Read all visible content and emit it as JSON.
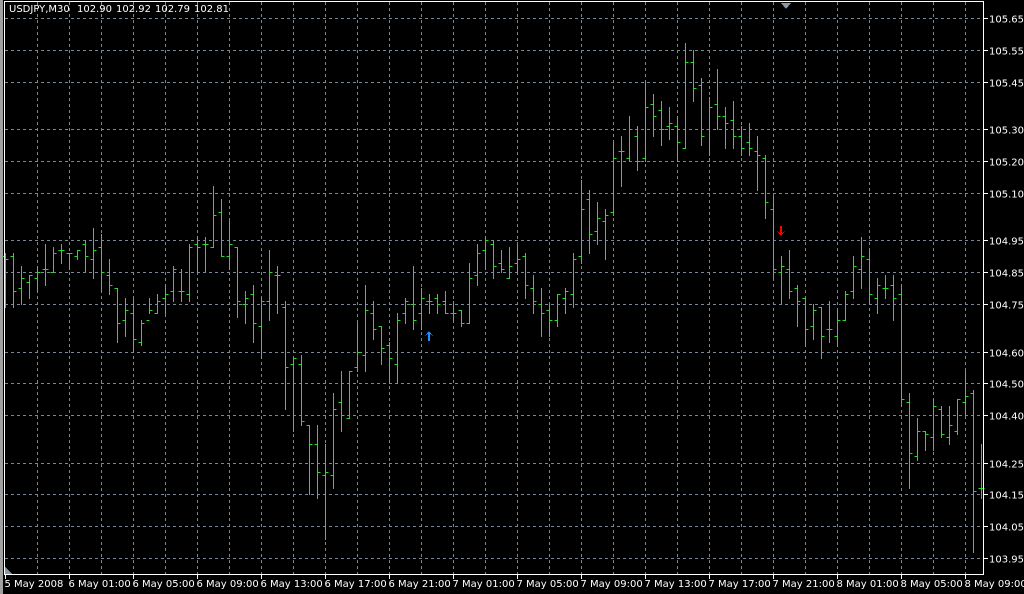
{
  "header": {
    "symbol": "USDJPY,M30",
    "open": "102.90",
    "high": "102.92",
    "low": "102.79",
    "close": "102.81"
  },
  "colors": {
    "background": "#000000",
    "bars": "#22e022",
    "grid": "#778899",
    "axis": "#ffffff",
    "buy_arrow": "#1e90ff",
    "sell_arrow": "#ff0000"
  },
  "chart_data": {
    "type": "ohlc",
    "title": "USDJPY,M30",
    "xlabel": "",
    "ylabel": "",
    "ylim": [
      103.95,
      105.65
    ],
    "grid": true,
    "y_axis_position": "right",
    "y_ticks": [
      "105.65",
      "105.55",
      "105.45",
      "105.30",
      "105.20",
      "105.10",
      "104.95",
      "104.85",
      "104.75",
      "104.60",
      "104.50",
      "104.40",
      "104.25",
      "104.15",
      "104.05",
      "103.95"
    ],
    "x_ticks": [
      {
        "bar": 0,
        "label": "5 May 2008"
      },
      {
        "bar": 8,
        "label": "6 May 01:00"
      },
      {
        "bar": 16,
        "label": "6 May 05:00"
      },
      {
        "bar": 24,
        "label": "6 May 09:00"
      },
      {
        "bar": 32,
        "label": "6 May 13:00"
      },
      {
        "bar": 40,
        "label": "6 May 17:00"
      },
      {
        "bar": 48,
        "label": "6 May 21:00"
      },
      {
        "bar": 56,
        "label": "7 May 01:00"
      },
      {
        "bar": 64,
        "label": "7 May 05:00"
      },
      {
        "bar": 72,
        "label": "7 May 09:00"
      },
      {
        "bar": 80,
        "label": "7 May 13:00"
      },
      {
        "bar": 88,
        "label": "7 May 17:00"
      },
      {
        "bar": 96,
        "label": "7 May 21:00"
      },
      {
        "bar": 104,
        "label": "8 May 01:00"
      },
      {
        "bar": 112,
        "label": "8 May 05:00"
      },
      {
        "bar": 120,
        "label": "8 May 09:00"
      }
    ],
    "ohlc_fields": [
      "open",
      "high",
      "low",
      "close"
    ],
    "bars": [
      [
        104.9,
        104.91,
        104.74,
        104.89
      ],
      [
        104.9,
        104.91,
        104.74,
        104.79
      ],
      [
        104.8,
        104.87,
        104.75,
        104.83
      ],
      [
        104.82,
        104.84,
        104.77,
        104.84
      ],
      [
        104.83,
        104.87,
        104.79,
        104.85
      ],
      [
        104.86,
        104.94,
        104.81,
        104.86
      ],
      [
        104.85,
        104.93,
        104.85,
        104.91
      ],
      [
        104.92,
        104.94,
        104.88,
        104.92
      ],
      [
        104.91,
        104.91,
        104.86,
        104.91
      ],
      [
        104.9,
        104.92,
        104.89,
        104.92
      ],
      [
        104.94,
        104.95,
        104.85,
        104.9
      ],
      [
        104.89,
        104.99,
        104.83,
        104.92
      ],
      [
        104.93,
        104.97,
        104.79,
        104.85
      ],
      [
        104.84,
        104.89,
        104.78,
        104.81
      ],
      [
        104.8,
        104.8,
        104.63,
        104.69
      ],
      [
        104.7,
        104.77,
        104.65,
        104.73
      ],
      [
        104.72,
        104.77,
        104.6,
        104.64
      ],
      [
        104.63,
        104.7,
        104.62,
        104.69
      ],
      [
        104.7,
        104.77,
        104.72,
        104.73
      ],
      [
        104.72,
        104.78,
        104.72,
        104.76
      ],
      [
        104.77,
        104.81,
        104.72,
        104.78
      ],
      [
        104.79,
        104.87,
        104.76,
        104.86
      ],
      [
        104.79,
        104.86,
        104.76,
        104.79
      ],
      [
        104.78,
        104.94,
        104.76,
        104.93
      ],
      [
        104.94,
        104.96,
        104.85,
        104.93
      ],
      [
        104.94,
        104.96,
        104.85,
        104.94
      ],
      [
        104.93,
        105.12,
        104.93,
        105.03
      ],
      [
        105.04,
        105.08,
        104.9,
        104.9
      ],
      [
        104.9,
        105.01,
        104.86,
        104.94
      ],
      [
        104.93,
        104.93,
        104.71,
        104.76
      ],
      [
        104.75,
        104.79,
        104.69,
        104.77
      ],
      [
        104.78,
        104.81,
        104.63,
        104.69
      ],
      [
        104.68,
        104.77,
        104.58,
        104.76
      ],
      [
        104.76,
        104.92,
        104.7,
        104.85
      ],
      [
        104.84,
        104.87,
        104.72,
        104.84
      ],
      [
        104.74,
        104.76,
        104.42,
        104.55
      ],
      [
        104.56,
        104.58,
        104.35,
        104.58
      ],
      [
        104.56,
        104.59,
        104.37,
        104.38
      ],
      [
        104.37,
        104.37,
        104.15,
        104.31
      ],
      [
        104.31,
        104.37,
        104.14,
        104.22
      ],
      [
        104.21,
        104.31,
        104.01,
        104.22
      ],
      [
        104.21,
        104.47,
        104.17,
        104.42
      ],
      [
        104.44,
        104.54,
        104.35,
        104.4
      ],
      [
        104.39,
        104.54,
        104.39,
        104.54
      ],
      [
        104.55,
        104.69,
        104.54,
        104.6
      ],
      [
        104.59,
        104.81,
        104.54,
        104.73
      ],
      [
        104.72,
        104.76,
        104.64,
        104.67
      ],
      [
        104.68,
        104.68,
        104.56,
        104.61
      ],
      [
        104.62,
        104.63,
        104.5,
        104.58
      ],
      [
        104.56,
        104.72,
        104.5,
        104.7
      ],
      [
        104.72,
        104.77,
        104.69,
        104.76
      ],
      [
        104.75,
        104.87,
        104.67,
        104.7
      ],
      [
        104.72,
        104.8,
        104.67,
        104.77
      ],
      [
        104.76,
        104.78,
        104.72,
        104.76
      ],
      [
        104.77,
        104.78,
        104.72,
        104.75
      ],
      [
        104.76,
        104.79,
        104.72,
        104.72
      ],
      [
        104.72,
        104.76,
        104.7,
        104.72
      ],
      [
        104.73,
        104.73,
        104.68,
        104.69
      ],
      [
        104.69,
        104.88,
        104.69,
        104.83
      ],
      [
        104.84,
        104.94,
        104.81,
        104.91
      ],
      [
        104.92,
        104.96,
        104.86,
        104.95
      ],
      [
        104.94,
        104.95,
        104.83,
        104.87
      ],
      [
        104.88,
        104.92,
        104.85,
        104.86
      ],
      [
        104.83,
        104.93,
        104.83,
        104.87
      ],
      [
        104.88,
        104.94,
        104.85,
        104.89
      ],
      [
        104.9,
        104.91,
        104.77,
        104.81
      ],
      [
        104.8,
        104.84,
        104.72,
        104.76
      ],
      [
        104.75,
        104.8,
        104.65,
        104.72
      ],
      [
        104.73,
        104.75,
        104.65,
        104.7
      ],
      [
        104.7,
        104.78,
        104.68,
        104.78
      ],
      [
        104.77,
        104.8,
        104.72,
        104.79
      ],
      [
        104.78,
        104.91,
        104.74,
        104.89
      ],
      [
        104.9,
        105.14,
        104.88,
        105.05
      ],
      [
        105.08,
        105.11,
        104.91,
        104.97
      ],
      [
        104.98,
        105.07,
        104.94,
        105.02
      ],
      [
        105.01,
        105.05,
        104.89,
        105.03
      ],
      [
        105.04,
        105.26,
        105.03,
        105.21
      ],
      [
        105.23,
        105.28,
        105.12,
        105.23
      ],
      [
        105.21,
        105.34,
        105.2,
        105.3
      ],
      [
        105.28,
        105.31,
        105.17,
        105.2
      ],
      [
        105.21,
        105.45,
        105.2,
        105.37
      ],
      [
        105.38,
        105.41,
        105.28,
        105.34
      ],
      [
        105.36,
        105.39,
        105.25,
        105.3
      ],
      [
        105.31,
        105.37,
        105.27,
        105.32
      ],
      [
        105.31,
        105.34,
        105.2,
        105.26
      ],
      [
        105.24,
        105.57,
        105.24,
        105.51
      ],
      [
        105.51,
        105.55,
        105.39,
        105.43
      ],
      [
        105.44,
        105.46,
        105.25,
        105.28
      ],
      [
        105.3,
        105.4,
        105.22,
        105.37
      ],
      [
        105.38,
        105.49,
        105.3,
        105.34
      ],
      [
        105.34,
        105.37,
        105.24,
        105.32
      ],
      [
        105.33,
        105.39,
        105.24,
        105.28
      ],
      [
        105.28,
        105.31,
        105.22,
        105.24
      ],
      [
        105.26,
        105.32,
        105.22,
        105.24
      ],
      [
        105.23,
        105.28,
        105.11,
        105.22
      ],
      [
        105.21,
        105.22,
        105.02,
        105.07
      ],
      [
        105.05,
        105.09,
        104.83,
        104.86
      ],
      [
        104.85,
        104.9,
        104.75,
        104.87
      ],
      [
        104.86,
        104.92,
        104.77,
        104.79
      ],
      [
        104.8,
        104.81,
        104.68,
        104.76
      ],
      [
        104.77,
        104.77,
        104.62,
        104.67
      ],
      [
        104.68,
        104.75,
        104.64,
        104.73
      ],
      [
        104.74,
        104.74,
        104.58,
        104.65
      ],
      [
        104.67,
        104.76,
        104.63,
        104.67
      ],
      [
        104.65,
        104.73,
        104.62,
        104.7
      ],
      [
        104.7,
        104.79,
        104.7,
        104.78
      ],
      [
        104.79,
        104.9,
        104.77,
        104.87
      ],
      [
        104.86,
        104.96,
        104.8,
        104.9
      ],
      [
        104.89,
        104.92,
        104.75,
        104.78
      ],
      [
        104.77,
        104.83,
        104.72,
        104.81
      ],
      [
        104.8,
        104.84,
        104.77,
        104.8
      ],
      [
        104.81,
        104.84,
        104.7,
        104.77
      ],
      [
        104.78,
        104.81,
        104.43,
        104.45
      ],
      [
        104.44,
        104.47,
        104.17,
        104.28
      ],
      [
        104.27,
        104.39,
        104.26,
        104.35
      ],
      [
        104.35,
        104.35,
        104.29,
        104.34
      ],
      [
        104.33,
        104.45,
        104.29,
        104.43
      ],
      [
        104.42,
        104.43,
        104.33,
        104.34
      ],
      [
        104.33,
        104.43,
        104.31,
        104.37
      ],
      [
        104.35,
        104.45,
        104.34,
        104.45
      ],
      [
        104.44,
        104.54,
        104.4,
        104.46
      ],
      [
        104.47,
        104.48,
        103.97,
        104.16
      ],
      [
        104.17,
        104.31,
        104.14,
        104.17
      ]
    ],
    "markers": [
      {
        "type": "buy-arrow",
        "bar": 53,
        "price": 104.65
      },
      {
        "type": "sell-arrow",
        "bar": 97,
        "price": 104.98
      }
    ]
  }
}
